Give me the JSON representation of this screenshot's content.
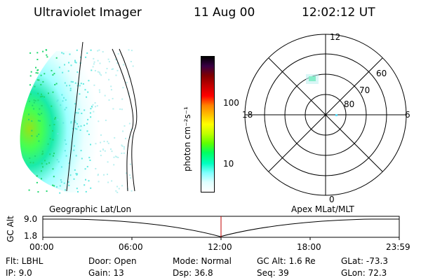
{
  "header": {
    "instrument": "Ultraviolet Imager",
    "date": "11 Aug 00",
    "time": "12:02:12 UT"
  },
  "colorbar": {
    "unit_label": "photon cm⁻²s⁻¹",
    "ticks": [
      "100",
      "10"
    ],
    "colors": [
      "#000000",
      "#3a0044",
      "#800000",
      "#c00000",
      "#ff0000",
      "#ff8000",
      "#ffc000",
      "#ffff00",
      "#c0ff00",
      "#60ff00",
      "#00ff60",
      "#00ffc0",
      "#80ffff",
      "#e0ffff",
      "#ffffff"
    ]
  },
  "polar_plot": {
    "mlt_labels": [
      "12",
      "18",
      "6",
      "0"
    ],
    "lat_labels": [
      "60",
      "70",
      "80"
    ]
  },
  "timeline": {
    "left_title": "Geographic Lat/Lon",
    "right_title": "Apex MLat/MLT",
    "axis_label": "GC Alt",
    "y_ticks": [
      "9.0",
      "1.8"
    ],
    "x_ticks": [
      "00:00",
      "06:00",
      "12:00",
      "18:00",
      "23:59"
    ]
  },
  "footer": {
    "flt": "Flt: LBHL",
    "ip": "IP:  9.0",
    "door": "Door: Open",
    "gain": "Gain: 13",
    "mode": "Mode: Normal",
    "dsp": "Dsp:    36.8",
    "gcalt": "GC Alt: 1.6 Re",
    "seq": "Seq: 39",
    "glat": "GLat:  -73.3",
    "glon": "GLon:  72.3"
  }
}
